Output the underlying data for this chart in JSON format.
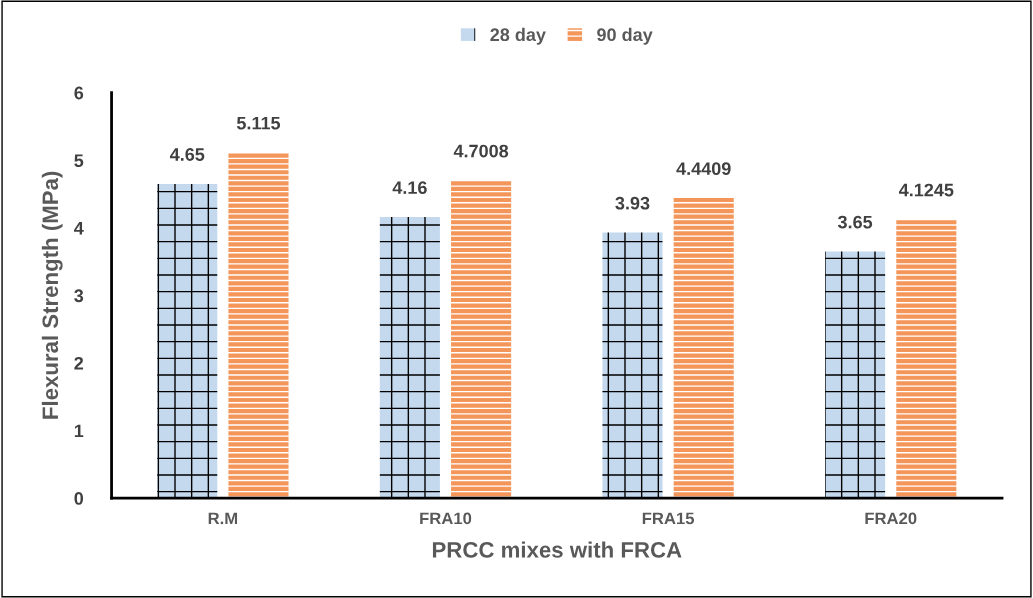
{
  "chart_data": {
    "type": "bar",
    "xlabel": "PRCC mixes with FRCA",
    "ylabel": "Flexural Strength (MPa)",
    "categories": [
      "R.M",
      "FRA10",
      "FRA15",
      "FRA20"
    ],
    "series": [
      {
        "name": "28 day",
        "color": "#c5d9ee",
        "values": [
          4.65,
          4.16,
          3.93,
          3.65
        ]
      },
      {
        "name": "90 day",
        "color": "#f4955a",
        "values": [
          5.115,
          4.7008,
          4.4409,
          4.1245
        ]
      }
    ],
    "ylim": [
      0,
      6
    ],
    "yticks": [
      0,
      1,
      2,
      3,
      4,
      5,
      6
    ],
    "grid": false,
    "legend": "top",
    "data_labels": true
  }
}
